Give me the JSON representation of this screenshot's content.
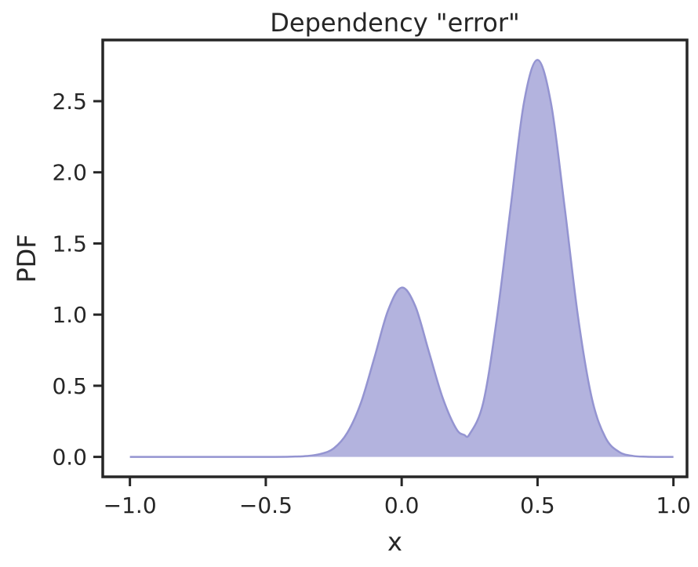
{
  "chart_data": {
    "type": "area",
    "title": "Dependency \"error\"",
    "xlabel": "x",
    "ylabel": "PDF",
    "xlim": [
      -1.1,
      1.05
    ],
    "ylim": [
      -0.14,
      2.93
    ],
    "xticks": [
      -1.0,
      -0.5,
      0.0,
      0.5,
      1.0
    ],
    "xtick_labels": [
      "−1.0",
      "−0.5",
      "0.0",
      "0.5",
      "1.0"
    ],
    "yticks": [
      0.0,
      0.5,
      1.0,
      1.5,
      2.0,
      2.5
    ],
    "ytick_labels": [
      "0.0",
      "0.5",
      "1.0",
      "1.5",
      "2.0",
      "2.5"
    ],
    "grid": false,
    "fill_color": "#b3b3de",
    "line_color": "#9494d1",
    "series": [
      {
        "x": [
          -1.0,
          -0.5,
          -0.4,
          -0.35,
          -0.3,
          -0.25,
          -0.2,
          -0.15,
          -0.1,
          -0.05,
          0.0,
          0.05,
          0.1,
          0.15,
          0.2,
          0.23,
          0.25,
          0.3,
          0.35,
          0.4,
          0.45,
          0.5,
          0.55,
          0.6,
          0.65,
          0.7,
          0.75,
          0.8,
          0.85,
          0.9,
          0.95,
          1.0
        ],
        "y": [
          0.0,
          0.0,
          0.002,
          0.006,
          0.02,
          0.06,
          0.17,
          0.38,
          0.7,
          1.03,
          1.19,
          1.06,
          0.74,
          0.42,
          0.2,
          0.155,
          0.16,
          0.38,
          0.97,
          1.74,
          2.49,
          2.79,
          2.48,
          1.75,
          0.97,
          0.41,
          0.135,
          0.035,
          0.007,
          0.001,
          0.0,
          0.0
        ]
      }
    ]
  }
}
